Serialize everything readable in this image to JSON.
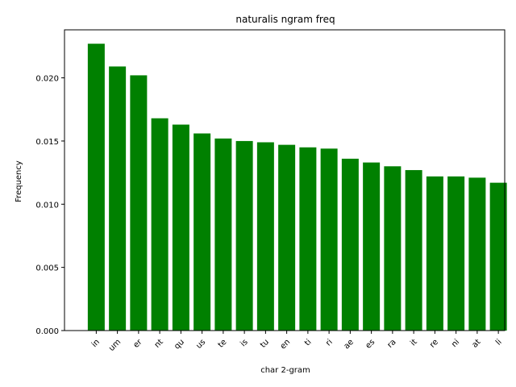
{
  "chart_data": {
    "type": "bar",
    "title": "naturalis ngram freq",
    "xlabel": "char 2-gram",
    "ylabel": "Frequency",
    "categories": [
      "in",
      "um",
      "er",
      "nt",
      "qu",
      "us",
      "te",
      "is",
      "tu",
      "en",
      "ti",
      "ri",
      "ae",
      "es",
      "ra",
      "it",
      "re",
      "ni",
      "at",
      "li"
    ],
    "values": [
      0.0227,
      0.0209,
      0.0202,
      0.0168,
      0.0163,
      0.0156,
      0.0152,
      0.015,
      0.0149,
      0.0147,
      0.0145,
      0.0144,
      0.0136,
      0.0133,
      0.013,
      0.0127,
      0.0122,
      0.0122,
      0.0121,
      0.0117
    ],
    "ylim": [
      0,
      0.0238
    ],
    "yticks": [
      "0.000",
      "0.005",
      "0.010",
      "0.015",
      "0.020"
    ],
    "bar_color": "#008000",
    "grid": false
  }
}
